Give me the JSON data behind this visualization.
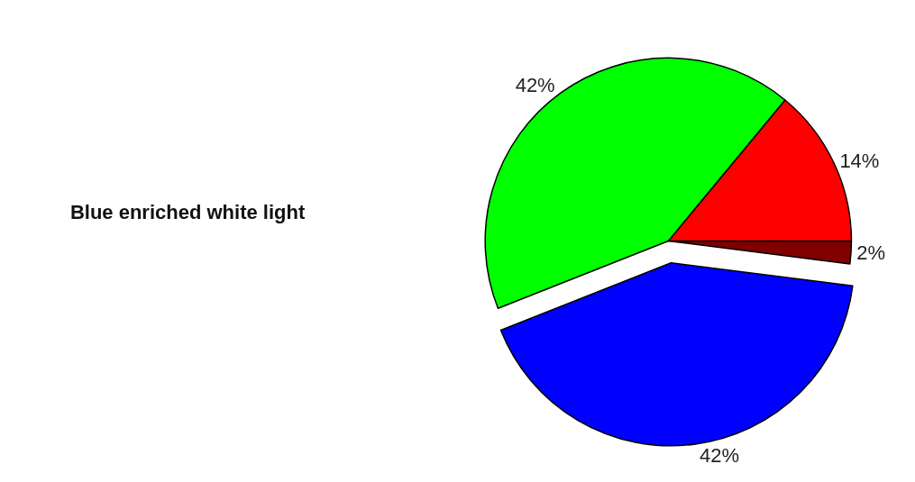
{
  "chart_data": {
    "type": "pie",
    "title": "Blue enriched white light",
    "categories": [
      null,
      null,
      null,
      null
    ],
    "values": [
      2,
      14,
      42,
      42
    ],
    "colors": [
      "#800000",
      "#ff0000",
      "#00ff00",
      "#0000ff"
    ],
    "value_labels": [
      "2%",
      "14%",
      "42%",
      "42%"
    ],
    "legend": false
  }
}
